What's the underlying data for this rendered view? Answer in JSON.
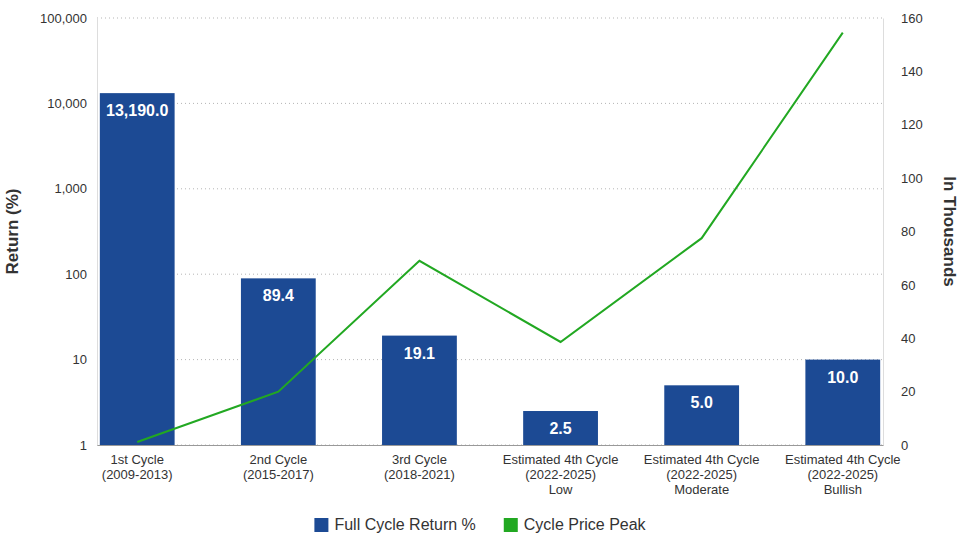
{
  "chart_data": {
    "type": "bar",
    "categories": [
      "1st Cycle\n(2009-2013)",
      "2nd Cycle\n(2015-2017)",
      "3rd Cycle\n(2018-2021)",
      "Estimated 4th Cycle\n(2022-2025)\nLow",
      "Estimated 4th Cycle\n(2022-2025)\nModerate",
      "Estimated 4th Cycle\n(2022-2025)\nBullish"
    ],
    "y_label": "Return (%)",
    "y2_label": "In Thousands",
    "series": [
      {
        "name": "Full Cycle Return %",
        "type": "bar",
        "color": "#1c4a94",
        "values": [
          13190,
          89.4,
          19.1,
          2.5,
          5.0,
          10.0
        ],
        "value_labels": [
          "13,190.0",
          "89.4",
          "19.1",
          "2.5",
          "5.0",
          "10.0"
        ]
      },
      {
        "name": "Cycle Price Peak",
        "type": "line",
        "axis": "y2",
        "color": "#22a822",
        "values": [
          1.1,
          20,
          69,
          38.6,
          77.5,
          154.5
        ]
      }
    ],
    "log": "y",
    "ylim": [
      1,
      100000
    ],
    "yticks": [
      1,
      10,
      100,
      {
        "value": 1000,
        "label": "1,000"
      },
      {
        "value": 10000,
        "label": "10,000"
      },
      {
        "value": 100000,
        "label": "100,000"
      }
    ],
    "y2lim": [
      0,
      160
    ],
    "y2ticks": [
      0,
      20,
      40,
      60,
      80,
      100,
      120,
      140,
      160
    ],
    "grid": true,
    "legend": "bottom",
    "data_labels": true
  }
}
